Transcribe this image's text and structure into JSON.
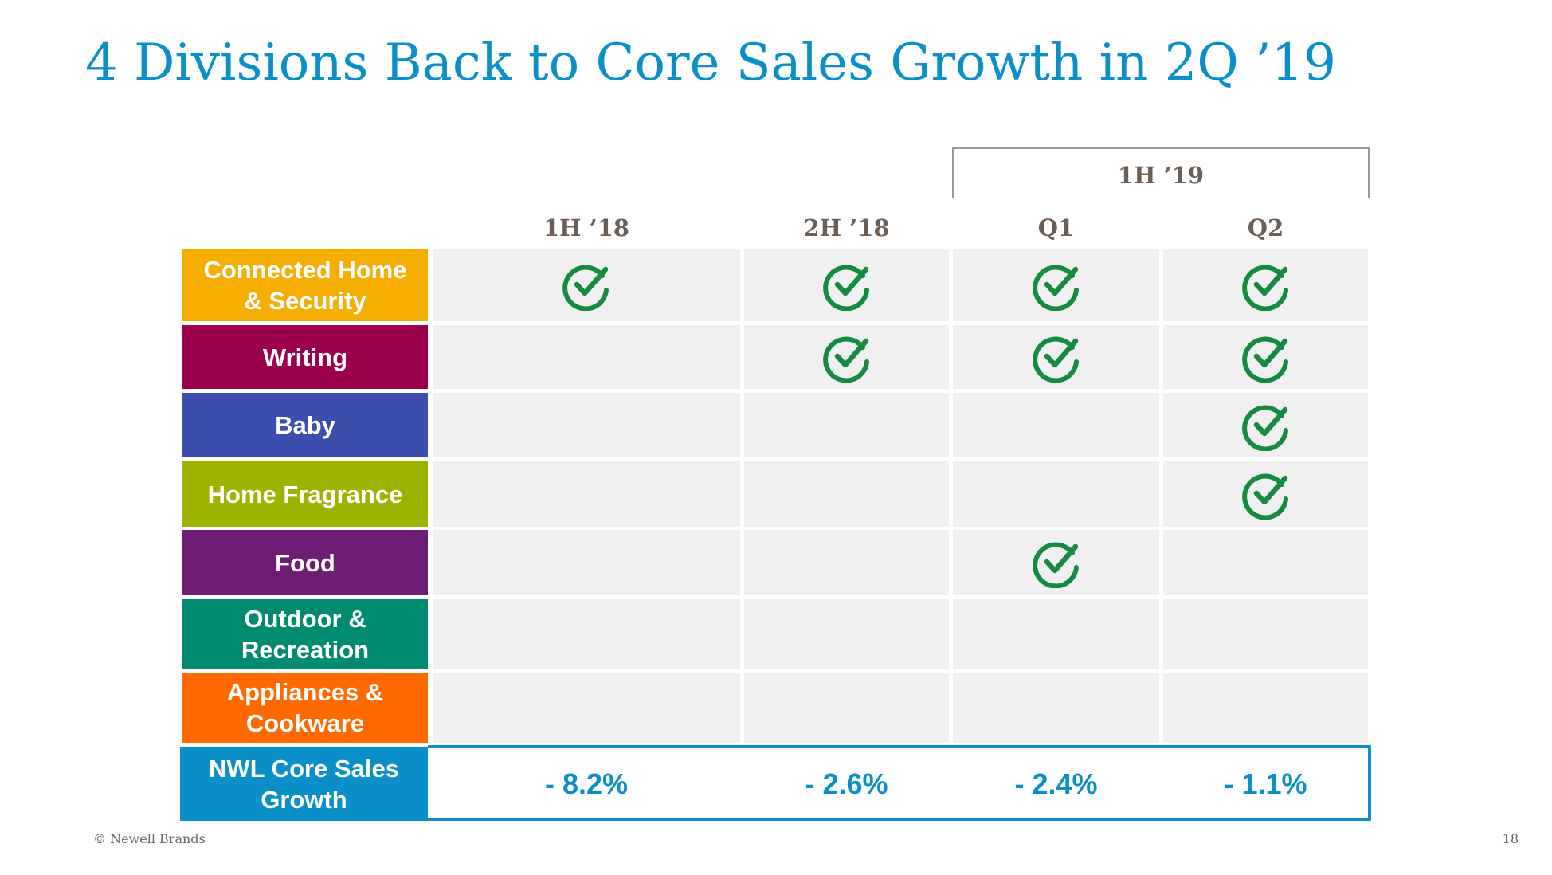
{
  "header": {
    "title": "4 Divisions Back to Core Sales Growth in 2Q ’19"
  },
  "table": {
    "group_header": "1H ’19",
    "columns": [
      "1H ’18",
      "2H ’18",
      "Q1",
      "Q2"
    ],
    "rows": [
      {
        "label": "Connected Home & Security",
        "color": "#f5ad00",
        "checks": [
          true,
          true,
          true,
          true
        ]
      },
      {
        "label": "Writing",
        "color": "#9c004b",
        "checks": [
          false,
          true,
          true,
          true
        ]
      },
      {
        "label": "Baby",
        "color": "#3c4faf",
        "checks": [
          false,
          false,
          false,
          true
        ]
      },
      {
        "label": "Home Fragrance",
        "color": "#9db300",
        "checks": [
          false,
          false,
          false,
          true
        ]
      },
      {
        "label": "Food",
        "color": "#6d1e74",
        "checks": [
          false,
          false,
          true,
          false
        ]
      },
      {
        "label": "Outdoor & Recreation",
        "color": "#008a70",
        "checks": [
          false,
          false,
          false,
          false
        ]
      },
      {
        "label": "Appliances & Cookware",
        "color": "#ff6a00",
        "checks": [
          false,
          false,
          false,
          false
        ]
      }
    ],
    "total": {
      "label": "NWL Core Sales Growth",
      "color": "#0a8fc9",
      "values": [
        "- 8.2%",
        "- 2.6%",
        "- 2.4%",
        "- 1.1%"
      ]
    }
  },
  "footer": {
    "copyright": "© Newell Brands",
    "page": "18"
  }
}
